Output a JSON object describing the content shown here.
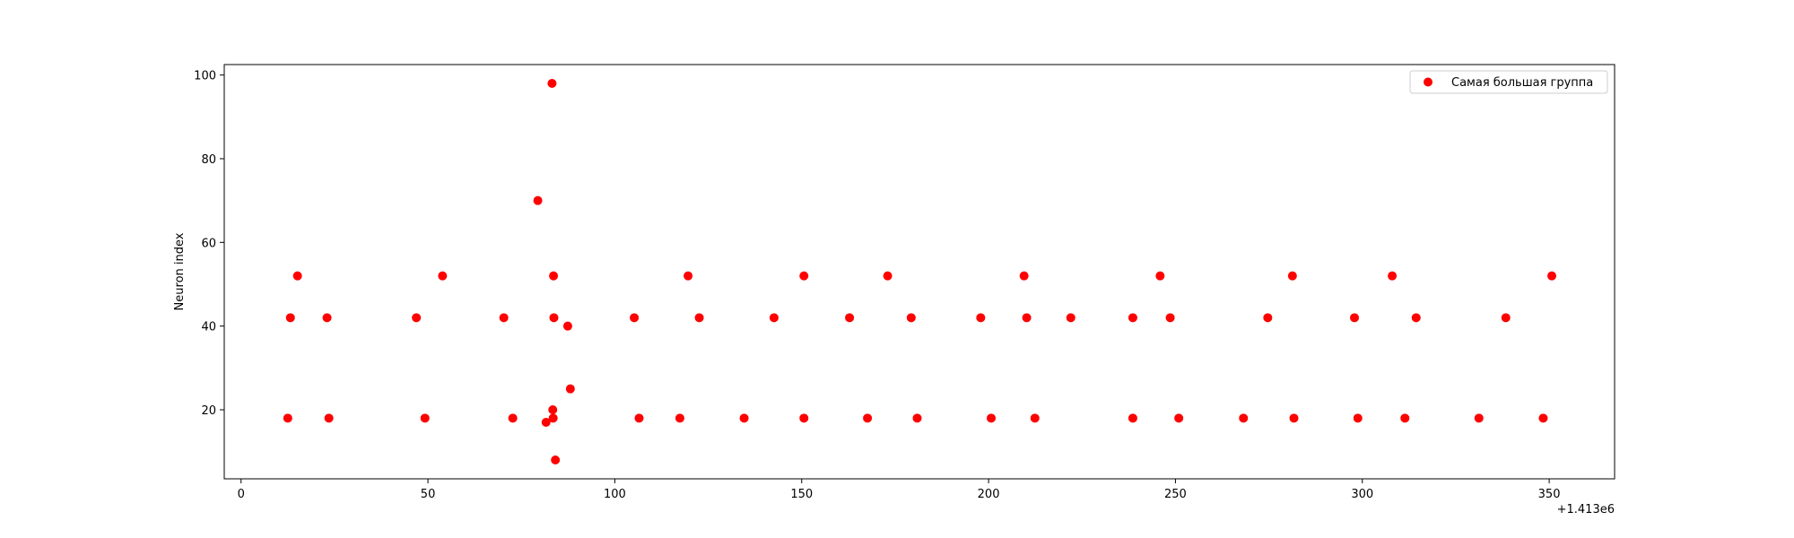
{
  "chart_data": {
    "type": "scatter",
    "xlabel": "",
    "ylabel": "Neuron index",
    "x_offset_label": "+1.413e6",
    "xlim": [
      -4.5,
      367.5
    ],
    "ylim": [
      3.5,
      102.5
    ],
    "xticks": [
      "0",
      "50",
      "100",
      "150",
      "200",
      "250",
      "300",
      "350"
    ],
    "yticks": [
      "20",
      "40",
      "60",
      "80",
      "100"
    ],
    "xtick_values": [
      0,
      50,
      100,
      150,
      200,
      250,
      300,
      350
    ],
    "ytick_values": [
      20,
      40,
      60,
      80,
      100
    ],
    "grid": false,
    "legend_position": "top-right",
    "series": [
      {
        "name": "Самая большая группа",
        "color": "#ff0000",
        "points": [
          [
            12.5,
            18
          ],
          [
            13.2,
            42
          ],
          [
            15.1,
            52
          ],
          [
            23,
            42
          ],
          [
            23.5,
            18
          ],
          [
            46.9,
            42
          ],
          [
            49.2,
            18
          ],
          [
            53.9,
            52
          ],
          [
            70.3,
            42
          ],
          [
            72.7,
            18
          ],
          [
            79.4,
            70
          ],
          [
            81.6,
            17
          ],
          [
            83.2,
            98
          ],
          [
            83.4,
            20
          ],
          [
            83.5,
            18
          ],
          [
            83.6,
            52
          ],
          [
            83.7,
            42
          ],
          [
            84.1,
            8
          ],
          [
            87.4,
            40
          ],
          [
            88.1,
            25
          ],
          [
            105.2,
            42
          ],
          [
            106.5,
            18
          ],
          [
            117.4,
            18
          ],
          [
            119.6,
            52
          ],
          [
            122.6,
            42
          ],
          [
            134.6,
            18
          ],
          [
            142.6,
            42
          ],
          [
            150.6,
            52
          ],
          [
            150.6,
            18
          ],
          [
            162.8,
            42
          ],
          [
            167.6,
            18
          ],
          [
            173,
            52
          ],
          [
            179.3,
            42
          ],
          [
            180.9,
            18
          ],
          [
            197.9,
            42
          ],
          [
            200.7,
            18
          ],
          [
            209.5,
            52
          ],
          [
            210.2,
            42
          ],
          [
            212.4,
            18
          ],
          [
            222,
            42
          ],
          [
            238.6,
            42
          ],
          [
            238.6,
            18
          ],
          [
            245.9,
            52
          ],
          [
            248.6,
            42
          ],
          [
            250.9,
            18
          ],
          [
            268.2,
            18
          ],
          [
            274.7,
            42
          ],
          [
            281.3,
            52
          ],
          [
            281.7,
            18
          ],
          [
            297.9,
            42
          ],
          [
            298.8,
            18
          ],
          [
            308,
            52
          ],
          [
            311.4,
            18
          ],
          [
            314.4,
            42
          ],
          [
            331.2,
            18
          ],
          [
            338.4,
            42
          ],
          [
            348.4,
            18
          ],
          [
            350.7,
            52
          ]
        ]
      }
    ]
  }
}
